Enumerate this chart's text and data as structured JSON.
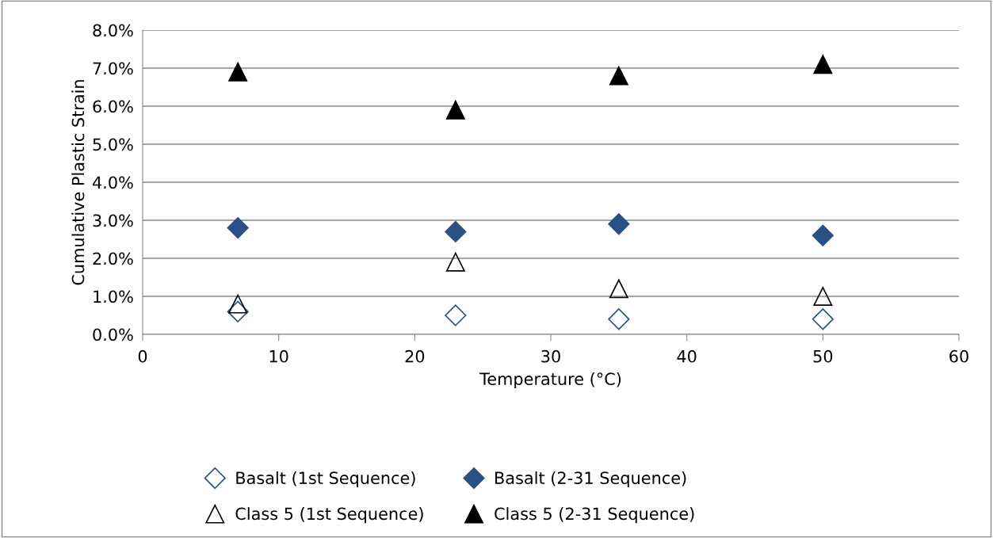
{
  "chart_data": {
    "type": "scatter",
    "xlabel": "Temperature (°C)",
    "ylabel": "Cumulative Plastic Strain",
    "x": [
      7,
      23,
      35,
      50
    ],
    "series": [
      {
        "name": "Basalt (1st Sequence)",
        "color": "#2a5185",
        "marker": "diamond",
        "values": [
          0.6,
          0.5,
          0.4,
          0.4
        ]
      },
      {
        "name": "Basalt (2-31 Sequence)",
        "color": "#2a5185",
        "marker": "diamond",
        "values": [
          2.8,
          2.7,
          2.9,
          2.6
        ]
      },
      {
        "name": "Class 5 (1st Sequence)",
        "color": "#000000",
        "marker": "triangle",
        "values": [
          0.8,
          1.9,
          1.2,
          1.0
        ]
      },
      {
        "name": "Class 5 (2-31 Sequence)",
        "color": "#000000",
        "marker": "triangle",
        "values": [
          6.9,
          5.9,
          6.8,
          7.1
        ]
      }
    ],
    "xlim": [
      0,
      60
    ],
    "xticks": [
      0,
      10,
      20,
      30,
      40,
      50,
      60
    ],
    "ylim": [
      0,
      8
    ],
    "yticks": [
      {
        "value": 0,
        "label": "0.0%"
      },
      {
        "value": 1,
        "label": "1.0%"
      },
      {
        "value": 2,
        "label": "2.0%"
      },
      {
        "value": 3,
        "label": "3.0%"
      },
      {
        "value": 4,
        "label": "4.0%"
      },
      {
        "value": 5,
        "label": "5.0%"
      },
      {
        "value": 6,
        "label": "6.0%"
      },
      {
        "value": 7,
        "label": "7.0%"
      },
      {
        "value": 8,
        "label": "8.0%"
      }
    ],
    "grid": "y",
    "legend": "bottom"
  }
}
